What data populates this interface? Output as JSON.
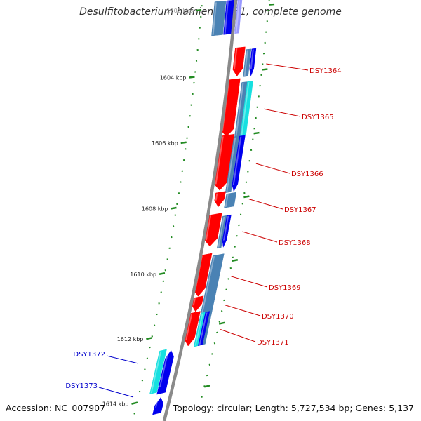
{
  "title": "Desulfitobacterium hafniense Y51, complete genome",
  "accession_label": "Accession: NC_007907",
  "topology_label": "Topology: circular; Length: 5,727,534 bp; Genes: 5,137",
  "colors": {
    "backbone": "#8a8a8a",
    "tick": "#228b22",
    "cds_forward": "#ff0000",
    "label_forward": "#cc0000",
    "label_reverse": "#0000cc",
    "blue": "#0000ee",
    "steel": "#4a82b4",
    "cyan": "#16e0e0",
    "light_blue": "#9999ff"
  },
  "ticks": [
    {
      "label": "1602 kbp",
      "faded": true
    },
    {
      "label": "1604 kbp"
    },
    {
      "label": "1606 kbp"
    },
    {
      "label": "1608 kbp"
    },
    {
      "label": "1610 kbp"
    },
    {
      "label": "1612 kbp"
    },
    {
      "label": "1614 kbp"
    }
  ],
  "gene_labels_right": [
    "DSY1364",
    "DSY1365",
    "DSY1366",
    "DSY1367",
    "DSY1368",
    "DSY1369",
    "DSY1370",
    "DSY1371"
  ],
  "gene_labels_left": [
    "DSY1372",
    "DSY1373"
  ]
}
